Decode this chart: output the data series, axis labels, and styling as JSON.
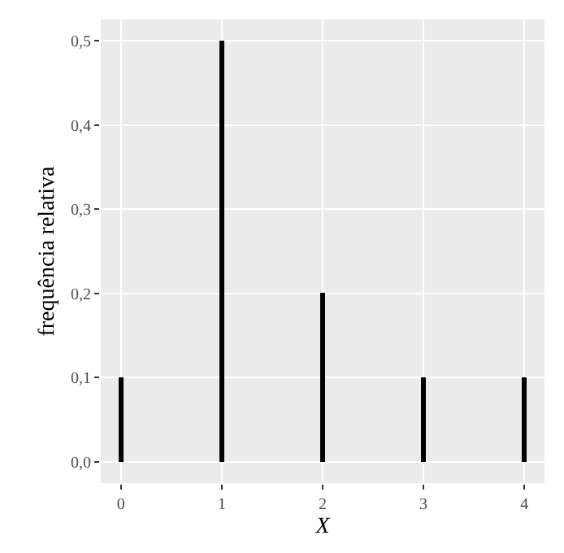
{
  "chart_data": {
    "type": "bar",
    "xlabel": "X",
    "ylabel": "frequência relativa",
    "x": [
      0,
      1,
      2,
      3,
      4
    ],
    "values": [
      0.1,
      0.5,
      0.2,
      0.1,
      0.1
    ],
    "color": "#000000",
    "xlim": [
      -0.2,
      4.2
    ],
    "xticks": [
      0,
      1,
      2,
      3,
      4
    ],
    "ylim": [
      -0.025,
      0.525
    ],
    "yticks": [
      {
        "value": 0,
        "label": "0,0"
      },
      {
        "value": 0.1,
        "label": "0,1"
      },
      {
        "value": 0.2,
        "label": "0,2"
      },
      {
        "value": 0.3,
        "label": "0,3"
      },
      {
        "value": 0.4,
        "label": "0,4"
      },
      {
        "value": 0.5,
        "label": "0,5"
      }
    ],
    "grid": true
  }
}
